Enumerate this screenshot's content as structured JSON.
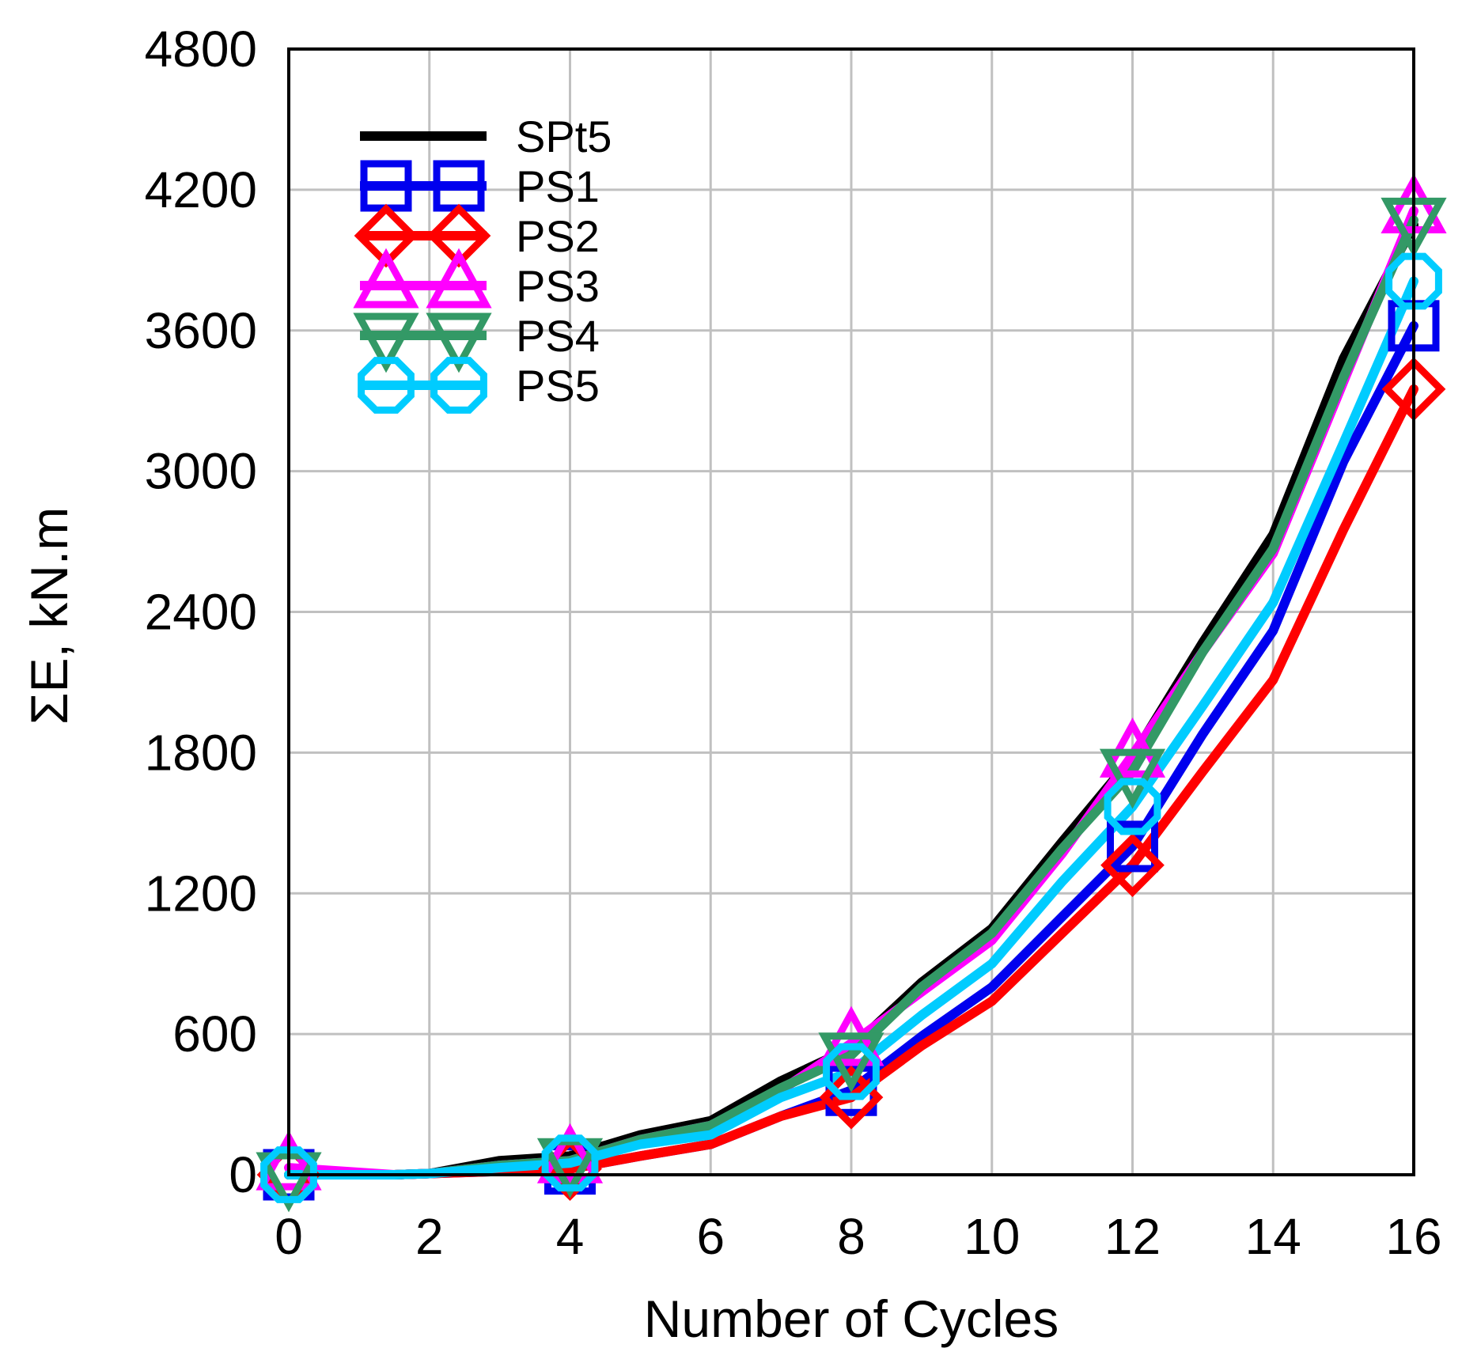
{
  "chart_data": {
    "type": "line",
    "title": "",
    "xlabel": "Number of Cycles",
    "ylabel": "ΣE, kN.m",
    "xlim": [
      0,
      16
    ],
    "ylim": [
      0,
      4800
    ],
    "xticks": [
      0,
      2,
      4,
      6,
      8,
      10,
      12,
      14,
      16
    ],
    "yticks": [
      0,
      600,
      1200,
      1800,
      2400,
      3000,
      3600,
      4200,
      4800
    ],
    "grid": true,
    "legend_position": "top-left",
    "series": [
      {
        "name": "SPt5",
        "color": "#000000",
        "marker": "none",
        "x": [
          1.5,
          2,
          3,
          4,
          5,
          6,
          7,
          8,
          9,
          10,
          11,
          12,
          13,
          14,
          15,
          16
        ],
        "y": [
          0,
          5,
          60,
          80,
          170,
          230,
          400,
          540,
          820,
          1050,
          1420,
          1780,
          2270,
          2730,
          3480,
          4050
        ]
      },
      {
        "name": "PS1",
        "color": "#0000ee",
        "marker": "square",
        "x": [
          0,
          1.5,
          2,
          3,
          4,
          5,
          6,
          7,
          8,
          9,
          10,
          11,
          12,
          13,
          14,
          15,
          16
        ],
        "y": [
          0,
          0,
          5,
          15,
          25,
          80,
          130,
          250,
          360,
          590,
          800,
          1100,
          1400,
          1880,
          2320,
          3040,
          3620
        ]
      },
      {
        "name": "PS2",
        "color": "#ff0000",
        "marker": "diamond",
        "x": [
          0,
          1.5,
          2,
          3,
          4,
          5,
          6,
          7,
          8,
          9,
          10,
          11,
          12,
          13,
          14,
          15,
          16
        ],
        "y": [
          0,
          0,
          5,
          15,
          25,
          80,
          130,
          250,
          330,
          550,
          740,
          1030,
          1320,
          1720,
          2110,
          2750,
          3350
        ]
      },
      {
        "name": "PS3",
        "color": "#ff00ff",
        "marker": "triangle-up",
        "x": [
          0,
          1.5,
          2,
          3,
          4,
          5,
          6,
          7,
          8,
          9,
          10,
          11,
          12,
          13,
          14,
          15,
          16
        ],
        "y": [
          30,
          0,
          5,
          40,
          60,
          150,
          210,
          360,
          560,
          780,
          1000,
          1370,
          1790,
          2230,
          2650,
          3380,
          4110
        ]
      },
      {
        "name": "PS4",
        "color": "#339966",
        "marker": "triangle-down",
        "x": [
          0,
          1.5,
          2,
          3,
          4,
          5,
          6,
          7,
          8,
          9,
          10,
          11,
          12,
          13,
          14,
          15,
          16
        ],
        "y": [
          0,
          0,
          5,
          40,
          60,
          150,
          210,
          370,
          510,
          800,
          1030,
          1390,
          1720,
          2230,
          2670,
          3400,
          4070
        ]
      },
      {
        "name": "PS5",
        "color": "#00ccff",
        "marker": "octagon",
        "x": [
          0,
          1.5,
          2,
          3,
          4,
          5,
          6,
          7,
          8,
          9,
          10,
          11,
          12,
          13,
          14,
          15,
          16
        ],
        "y": [
          0,
          0,
          5,
          30,
          50,
          130,
          170,
          330,
          440,
          680,
          900,
          1250,
          1570,
          2000,
          2440,
          3120,
          3810
        ]
      }
    ]
  }
}
